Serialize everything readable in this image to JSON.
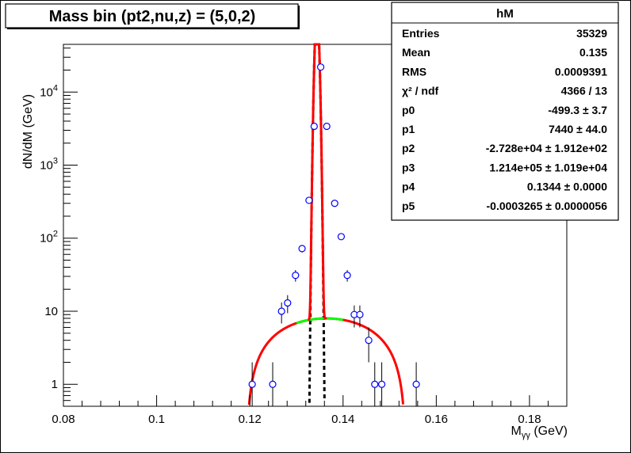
{
  "title": "Mass bin (pt2,nu,z) = (5,0,2)",
  "stats_box": {
    "name": "hM",
    "rows": [
      {
        "label": "Entries",
        "value": "35329"
      },
      {
        "label": "Mean",
        "value": "0.135"
      },
      {
        "label": "RMS",
        "value": "0.0009391"
      },
      {
        "label": "χ² / ndf",
        "value": "4366 / 13"
      },
      {
        "label": "p0",
        "value": "-499.3 ± 3.7"
      },
      {
        "label": "p1",
        "value": "7440 ± 44.0"
      },
      {
        "label": "p2",
        "value": "-2.728e+04 ± 1.912e+02"
      },
      {
        "label": "p3",
        "value": "1.214e+05 ± 1.019e+04"
      },
      {
        "label": "p4",
        "value": "0.1344 ± 0.0000"
      },
      {
        "label": "p5",
        "value": "-0.0003265 ± 0.0000056"
      }
    ]
  },
  "colors": {
    "points": "#0000ff",
    "fit_total": "#ff0000",
    "background": "#00ff00",
    "signal": "#000000"
  },
  "chart_data": {
    "type": "scatter",
    "xlabel": "M_γγ (GeV)",
    "ylabel": "dN/dM (GeV)",
    "xlim": [
      0.08,
      0.188
    ],
    "ylim": [
      0.5,
      45000
    ],
    "yscale": "log",
    "xticks": [
      0.08,
      0.1,
      0.12,
      0.14,
      0.16,
      0.18
    ],
    "xtick_labels": [
      "0.08",
      "0.1",
      "0.12",
      "0.14",
      "0.16",
      "0.18"
    ],
    "yticks": [
      1,
      10,
      100,
      1000,
      10000
    ],
    "ytick_labels": [
      {
        "base": "1",
        "exp": ""
      },
      {
        "base": "10",
        "exp": ""
      },
      {
        "base": "10",
        "exp": "2"
      },
      {
        "base": "10",
        "exp": "3"
      },
      {
        "base": "10",
        "exp": "4"
      }
    ],
    "points": [
      {
        "x": 0.1205,
        "y": 1,
        "err": 1
      },
      {
        "x": 0.1249,
        "y": 1,
        "err": 1
      },
      {
        "x": 0.1268,
        "y": 10,
        "err": 3.2
      },
      {
        "x": 0.1281,
        "y": 13,
        "err": 3.6
      },
      {
        "x": 0.1298,
        "y": 31,
        "err": 5.6
      },
      {
        "x": 0.1312,
        "y": 72,
        "err": 8.5
      },
      {
        "x": 0.1327,
        "y": 330,
        "err": 18
      },
      {
        "x": 0.1338,
        "y": 3400,
        "err": 58
      },
      {
        "x": 0.1352,
        "y": 22000,
        "err": 148
      },
      {
        "x": 0.1365,
        "y": 3400,
        "err": 58
      },
      {
        "x": 0.1382,
        "y": 300,
        "err": 17
      },
      {
        "x": 0.1396,
        "y": 105,
        "err": 10
      },
      {
        "x": 0.1409,
        "y": 31,
        "err": 5.6
      },
      {
        "x": 0.1424,
        "y": 9,
        "err": 3
      },
      {
        "x": 0.1436,
        "y": 9,
        "err": 3
      },
      {
        "x": 0.1455,
        "y": 4,
        "err": 2
      },
      {
        "x": 0.1468,
        "y": 1,
        "err": 1
      },
      {
        "x": 0.1483,
        "y": 1,
        "err": 1
      },
      {
        "x": 0.1557,
        "y": 1,
        "err": 1
      }
    ],
    "fit_params": {
      "p0": -499.3,
      "p1": 7440,
      "p2": -27280,
      "p3": 121400,
      "p4": 0.1344,
      "p5": -0.0003265
    },
    "fit_range": [
      0.13,
      0.14
    ]
  }
}
